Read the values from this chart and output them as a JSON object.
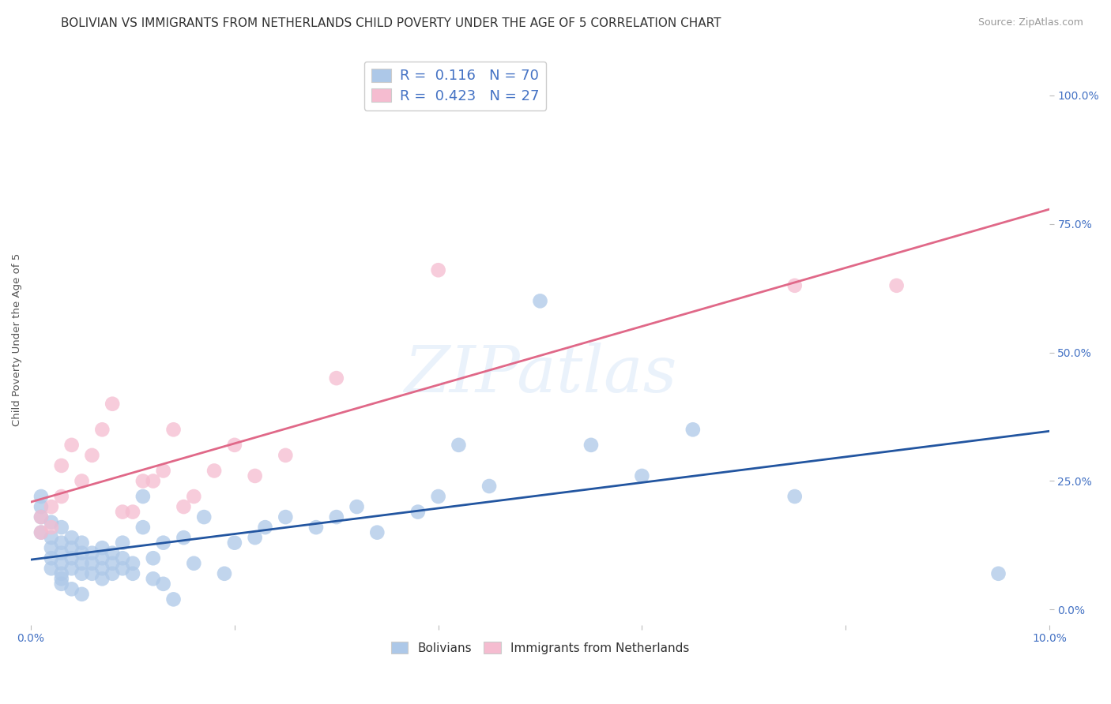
{
  "title": "BOLIVIAN VS IMMIGRANTS FROM NETHERLANDS CHILD POVERTY UNDER THE AGE OF 5 CORRELATION CHART",
  "source": "Source: ZipAtlas.com",
  "ylabel": "Child Poverty Under the Age of 5",
  "xlim": [
    0.0,
    0.1
  ],
  "ylim": [
    -0.03,
    1.08
  ],
  "xticks": [
    0.0,
    0.02,
    0.04,
    0.06,
    0.08,
    0.1
  ],
  "xticklabels": [
    "0.0%",
    "",
    "",
    "",
    "",
    "10.0%"
  ],
  "yticks_right": [
    0.0,
    0.25,
    0.5,
    0.75,
    1.0
  ],
  "yticklabels_right": [
    "0.0%",
    "25.0%",
    "50.0%",
    "75.0%",
    "100.0%"
  ],
  "bolivians_x": [
    0.001,
    0.001,
    0.001,
    0.001,
    0.002,
    0.002,
    0.002,
    0.002,
    0.002,
    0.003,
    0.003,
    0.003,
    0.003,
    0.003,
    0.003,
    0.003,
    0.004,
    0.004,
    0.004,
    0.004,
    0.004,
    0.005,
    0.005,
    0.005,
    0.005,
    0.005,
    0.006,
    0.006,
    0.006,
    0.007,
    0.007,
    0.007,
    0.007,
    0.008,
    0.008,
    0.008,
    0.009,
    0.009,
    0.009,
    0.01,
    0.01,
    0.011,
    0.011,
    0.012,
    0.012,
    0.013,
    0.013,
    0.014,
    0.015,
    0.016,
    0.017,
    0.019,
    0.02,
    0.022,
    0.023,
    0.025,
    0.028,
    0.03,
    0.032,
    0.034,
    0.038,
    0.04,
    0.042,
    0.045,
    0.05,
    0.055,
    0.06,
    0.065,
    0.075,
    0.095
  ],
  "bolivians_y": [
    0.2,
    0.18,
    0.15,
    0.22,
    0.17,
    0.14,
    0.12,
    0.1,
    0.08,
    0.16,
    0.13,
    0.11,
    0.09,
    0.07,
    0.06,
    0.05,
    0.14,
    0.12,
    0.1,
    0.08,
    0.04,
    0.13,
    0.11,
    0.09,
    0.07,
    0.03,
    0.11,
    0.09,
    0.07,
    0.12,
    0.1,
    0.08,
    0.06,
    0.11,
    0.09,
    0.07,
    0.13,
    0.1,
    0.08,
    0.09,
    0.07,
    0.22,
    0.16,
    0.1,
    0.06,
    0.13,
    0.05,
    0.02,
    0.14,
    0.09,
    0.18,
    0.07,
    0.13,
    0.14,
    0.16,
    0.18,
    0.16,
    0.18,
    0.2,
    0.15,
    0.19,
    0.22,
    0.32,
    0.24,
    0.6,
    0.32,
    0.26,
    0.35,
    0.22,
    0.07
  ],
  "netherlands_x": [
    0.001,
    0.001,
    0.002,
    0.002,
    0.003,
    0.003,
    0.004,
    0.005,
    0.006,
    0.007,
    0.008,
    0.009,
    0.01,
    0.011,
    0.012,
    0.013,
    0.014,
    0.015,
    0.016,
    0.018,
    0.02,
    0.022,
    0.025,
    0.03,
    0.04,
    0.075,
    0.085
  ],
  "netherlands_y": [
    0.18,
    0.15,
    0.2,
    0.16,
    0.28,
    0.22,
    0.32,
    0.25,
    0.3,
    0.35,
    0.4,
    0.19,
    0.19,
    0.25,
    0.25,
    0.27,
    0.35,
    0.2,
    0.22,
    0.27,
    0.32,
    0.26,
    0.3,
    0.45,
    0.66,
    0.63,
    0.63
  ],
  "blue_R": 0.116,
  "blue_N": 70,
  "pink_R": 0.423,
  "pink_N": 27,
  "blue_color": "#adc8e8",
  "pink_color": "#f5bcd0",
  "blue_line_color": "#2255a0",
  "pink_line_color": "#e06888",
  "title_fontsize": 11,
  "source_fontsize": 9,
  "label_fontsize": 9.5,
  "tick_fontsize": 10,
  "legend_fontsize": 13,
  "watermark_text": "ZIPatlas",
  "background_color": "#ffffff",
  "grid_color": "#dddddd"
}
